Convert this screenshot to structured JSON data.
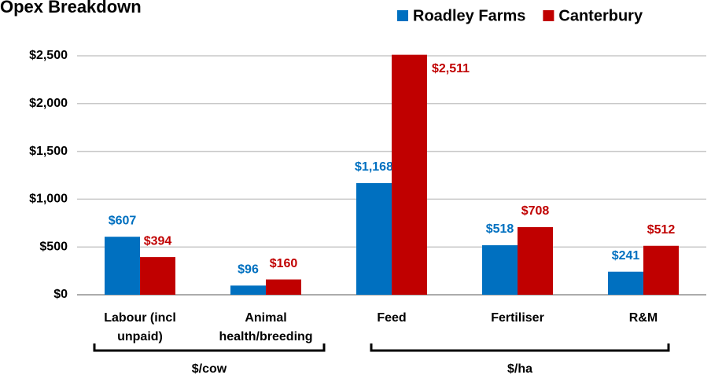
{
  "chart_data": {
    "type": "bar",
    "title": "Opex Breakdown",
    "categories": [
      "Labour (incl unpaid)",
      "Animal health/breeding",
      "Feed",
      "Fertiliser",
      "R&M"
    ],
    "series": [
      {
        "name": "Roadley Farms",
        "color": "#0070c0",
        "values": [
          607,
          96,
          1168,
          518,
          241
        ],
        "value_labels": [
          "$607",
          "$96",
          "$1,168",
          "$518",
          "$241"
        ]
      },
      {
        "name": "Canterbury",
        "color": "#c00000",
        "values": [
          394,
          160,
          2511,
          708,
          512
        ],
        "value_labels": [
          "$394",
          "$160",
          "$2,511",
          "$708",
          "$512"
        ]
      }
    ],
    "ylim": [
      0,
      2500
    ],
    "yticks": [
      {
        "value": 0,
        "label": "$0"
      },
      {
        "value": 500,
        "label": "$500"
      },
      {
        "value": 1000,
        "label": "$1,000"
      },
      {
        "value": 1500,
        "label": "$1,500"
      },
      {
        "value": 2000,
        "label": "$2,000"
      },
      {
        "value": 2500,
        "label": "$2,500"
      }
    ],
    "grid": true,
    "legend": "top-right",
    "group_labels": [
      "$/cow",
      "$/ha"
    ]
  }
}
